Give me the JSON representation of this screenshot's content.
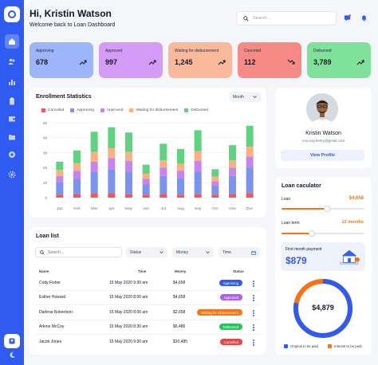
{
  "header": {
    "title": "Hi, Kristin Watson",
    "subtitle": "Welcome back to Loan Dashboard",
    "search_placeholder": "Search..."
  },
  "stats": [
    {
      "label": "Approving",
      "value": "678",
      "color": "#9db5fb"
    },
    {
      "label": "Approved",
      "value": "997",
      "color": "#d59cf7"
    },
    {
      "label": "Waiting for disbursement",
      "value": "1,245",
      "color": "#fbb99b"
    },
    {
      "label": "Canceled",
      "value": "112",
      "color": "#f88a85"
    },
    {
      "label": "Disbursed",
      "value": "3,789",
      "color": "#80e19b"
    }
  ],
  "enrollment": {
    "title": "Enrollment Statistics",
    "period": "Month",
    "legend": [
      {
        "label": "Canceled",
        "color": "#f2555a"
      },
      {
        "label": "Approving",
        "color": "#7b93f0"
      },
      {
        "label": "Approved",
        "color": "#c884ee"
      },
      {
        "label": "Waiting for disbursement",
        "color": "#fbb080"
      },
      {
        "label": "Disbursed",
        "color": "#5fd37f"
      }
    ]
  },
  "chart_data": {
    "type": "bar",
    "stacked": true,
    "categories": [
      "Jan",
      "Feb",
      "Mar",
      "Apr",
      "May",
      "Jun",
      "Jul",
      "Aug",
      "Sep",
      "Oct",
      "Nov",
      "Dec"
    ],
    "y_ticks": [
      "5k",
      "4k",
      "3k",
      "2k",
      "1k",
      "0"
    ],
    "ylim": [
      0,
      5000
    ],
    "series": [
      {
        "name": "Canceled",
        "color": "#f2555a",
        "values": [
          200,
          250,
          300,
          300,
          250,
          200,
          250,
          200,
          250,
          200,
          250,
          300
        ]
      },
      {
        "name": "Approving",
        "color": "#7b93f0",
        "values": [
          850,
          1000,
          1400,
          1600,
          1500,
          700,
          1200,
          1100,
          1500,
          600,
          1200,
          1700
        ]
      },
      {
        "name": "Approved",
        "color": "#c884ee",
        "values": [
          400,
          550,
          700,
          750,
          700,
          350,
          550,
          500,
          700,
          300,
          550,
          750
        ]
      },
      {
        "name": "Waiting for disbursement",
        "color": "#fbb080",
        "values": [
          400,
          500,
          650,
          650,
          600,
          350,
          500,
          450,
          650,
          300,
          500,
          650
        ]
      },
      {
        "name": "Disbursed",
        "color": "#5fd37f",
        "values": [
          550,
          850,
          1350,
          1400,
          1300,
          600,
          1100,
          1000,
          1400,
          500,
          1000,
          1400
        ]
      }
    ]
  },
  "loan_list": {
    "title": "Loan list",
    "search_placeholder": "Search...",
    "filters": [
      "Status",
      "Money",
      "Time"
    ],
    "columns": [
      "Name",
      "Time",
      "Money",
      "Status"
    ],
    "rows": [
      {
        "name": "Cody Fisher",
        "time": "15 May 2020 9:30 am",
        "money": "$4,658",
        "status": "Approving",
        "color": "#2f5bf0"
      },
      {
        "name": "Esther Howard",
        "time": "15 May 2020 8:00 am",
        "money": "$4,658",
        "status": "Approved",
        "color": "#b45cf0"
      },
      {
        "name": "Darlene Robertson",
        "time": "15 May 2020 8:00 am",
        "money": "$2,658",
        "status": "Waiting for disbursement",
        "color": "#f97316"
      },
      {
        "name": "Arlene McCoy",
        "time": "15 May 2020 8:30 am",
        "money": "$6,486",
        "status": "Disbursed",
        "color": "#22c55e"
      },
      {
        "name": "Jacob Jones",
        "time": "15 May 2020 9:30 am",
        "money": "$10,485",
        "status": "Canceled",
        "color": "#ef4444"
      }
    ]
  },
  "profile": {
    "name": "Kristin Watson",
    "email": "cou.maj.henry@gmail.com",
    "button": "View Profile"
  },
  "calculator": {
    "title": "Loan caculator",
    "loan_label": "Loan",
    "loan_value": "$4,658",
    "loan_fraction": 0.55,
    "term_label": "Loan term",
    "term_value": "12 months",
    "term_fraction": 0.37,
    "payment_label": "First month payment",
    "payment_value": "$879",
    "donut_value": "$4,879",
    "donut_principal_fraction": 0.78,
    "legend": [
      {
        "label": "Original to be paid",
        "color": "#2f5bf0"
      },
      {
        "label": "Interest to be paid",
        "color": "#f97316"
      }
    ]
  }
}
